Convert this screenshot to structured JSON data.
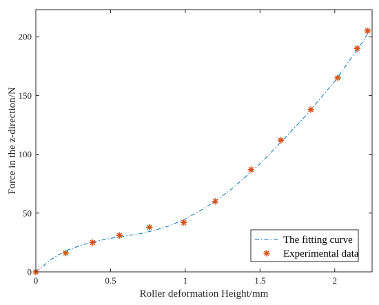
{
  "chart_data": {
    "type": "line",
    "xlabel": "Roller deformation Height/mm",
    "ylabel": "Force in the z-direction/N",
    "xlim": [
      0,
      2.25
    ],
    "ylim": [
      0,
      223
    ],
    "xticks": [
      0,
      0.5,
      1,
      1.5,
      2
    ],
    "xtick_labels": [
      "0",
      "0.5",
      "1",
      "1.5",
      "2"
    ],
    "yticks": [
      0,
      50,
      100,
      150,
      200
    ],
    "ytick_labels": [
      "0",
      "50",
      "100",
      "150",
      "200"
    ],
    "grid": false,
    "legend_position": "bottom-right",
    "series": [
      {
        "name": "The fitting curve",
        "style": "dash-dot line",
        "color": "#0072BD",
        "x": [
          0,
          0.05,
          0.1,
          0.2,
          0.3,
          0.4,
          0.5,
          0.6,
          0.7,
          0.8,
          0.9,
          1.0,
          1.1,
          1.2,
          1.3,
          1.4,
          1.5,
          1.6,
          1.7,
          1.8,
          1.9,
          2.0,
          2.1,
          2.2,
          2.22
        ],
        "y": [
          0,
          5,
          10.5,
          18,
          22.5,
          26,
          28.5,
          30.5,
          32.5,
          35.5,
          39.5,
          45,
          52,
          60,
          69.5,
          80.5,
          92,
          105,
          118.5,
          132,
          147,
          162,
          180,
          198,
          203
        ]
      },
      {
        "name": "Experimental data",
        "style": "asterisk markers",
        "color": "#D95319",
        "x": [
          0,
          0.2,
          0.38,
          0.56,
          0.76,
          0.99,
          1.2,
          1.44,
          1.64,
          1.84,
          2.02,
          2.15,
          2.22
        ],
        "y": [
          0,
          16,
          25,
          31,
          38,
          42,
          60,
          87,
          112,
          138,
          165,
          190,
          205
        ]
      }
    ]
  }
}
